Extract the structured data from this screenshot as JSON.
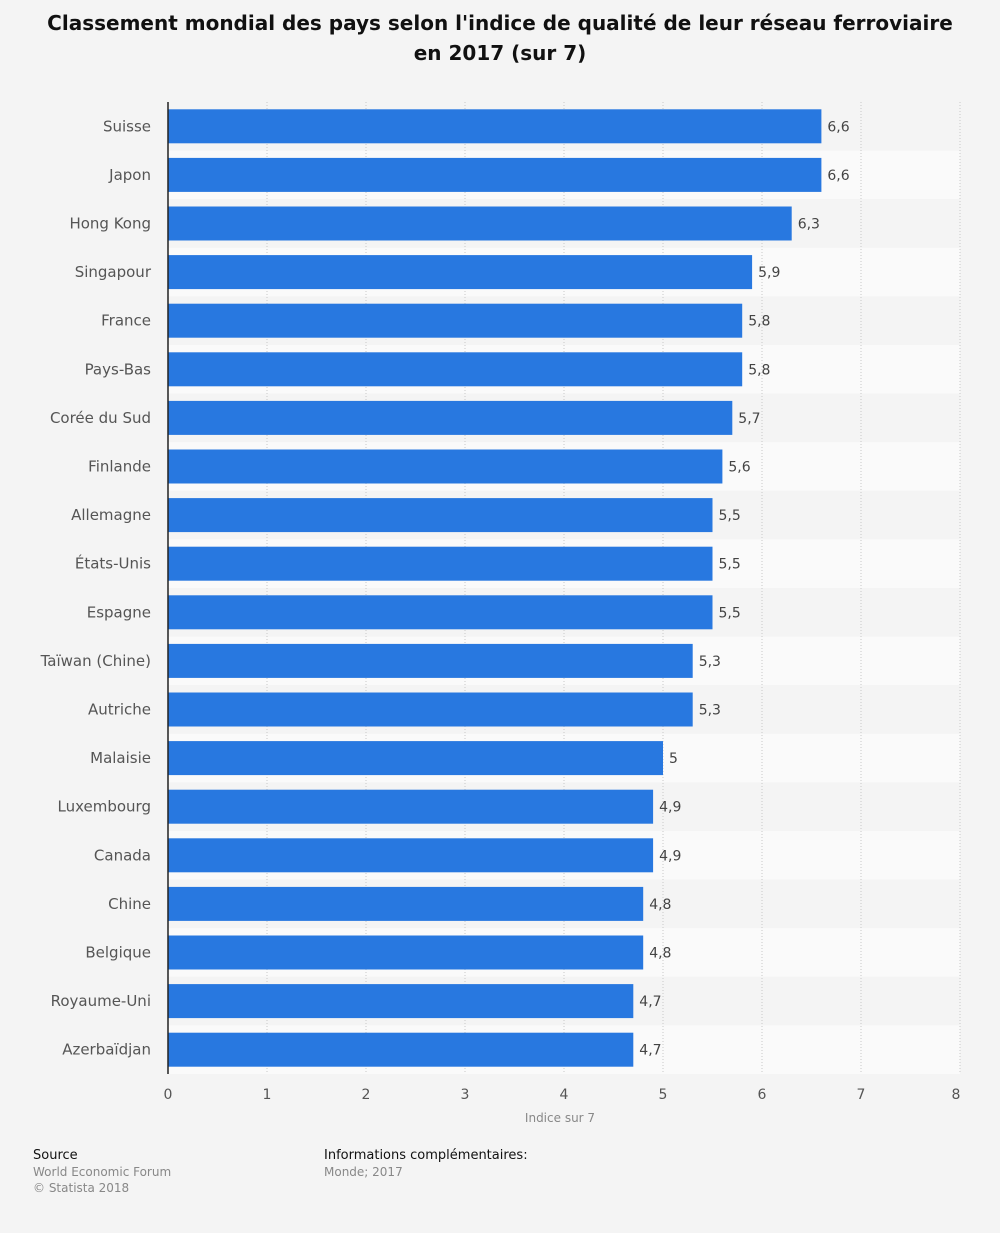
{
  "chart_data": {
    "type": "bar",
    "orientation": "horizontal",
    "title": "Classement mondial des pays selon l'indice de qualité de leur réseau ferroviaire en 2017 (sur 7)",
    "xlabel": "Indice sur 7",
    "ylabel": "",
    "xlim": [
      0,
      8
    ],
    "ticks": [
      0,
      1,
      2,
      3,
      4,
      5,
      6,
      7,
      8
    ],
    "grid": true,
    "bar_color": "#2878e0",
    "categories": [
      "Suisse",
      "Japon",
      "Hong Kong",
      "Singapour",
      "France",
      "Pays-Bas",
      "Corée du Sud",
      "Finlande",
      "Allemagne",
      "États-Unis",
      "Espagne",
      "Taïwan (Chine)",
      "Autriche",
      "Malaisie",
      "Luxembourg",
      "Canada",
      "Chine",
      "Belgique",
      "Royaume-Uni",
      "Azerbaïdjan"
    ],
    "values": [
      6.6,
      6.6,
      6.3,
      5.9,
      5.8,
      5.8,
      5.7,
      5.6,
      5.5,
      5.5,
      5.5,
      5.3,
      5.3,
      5,
      4.9,
      4.9,
      4.8,
      4.8,
      4.7,
      4.7
    ],
    "value_labels": [
      "6,6",
      "6,6",
      "6,3",
      "5,9",
      "5,8",
      "5,8",
      "5,7",
      "5,6",
      "5,5",
      "5,5",
      "5,5",
      "5,3",
      "5,3",
      "5",
      "4,9",
      "4,9",
      "4,8",
      "4,8",
      "4,7",
      "4,7"
    ]
  },
  "footer": {
    "source_heading": "Source",
    "source_name": "World Economic Forum",
    "copyright": "© Statista 2018",
    "info_heading": "Informations complémentaires:",
    "info_text": "Monde; 2017"
  }
}
